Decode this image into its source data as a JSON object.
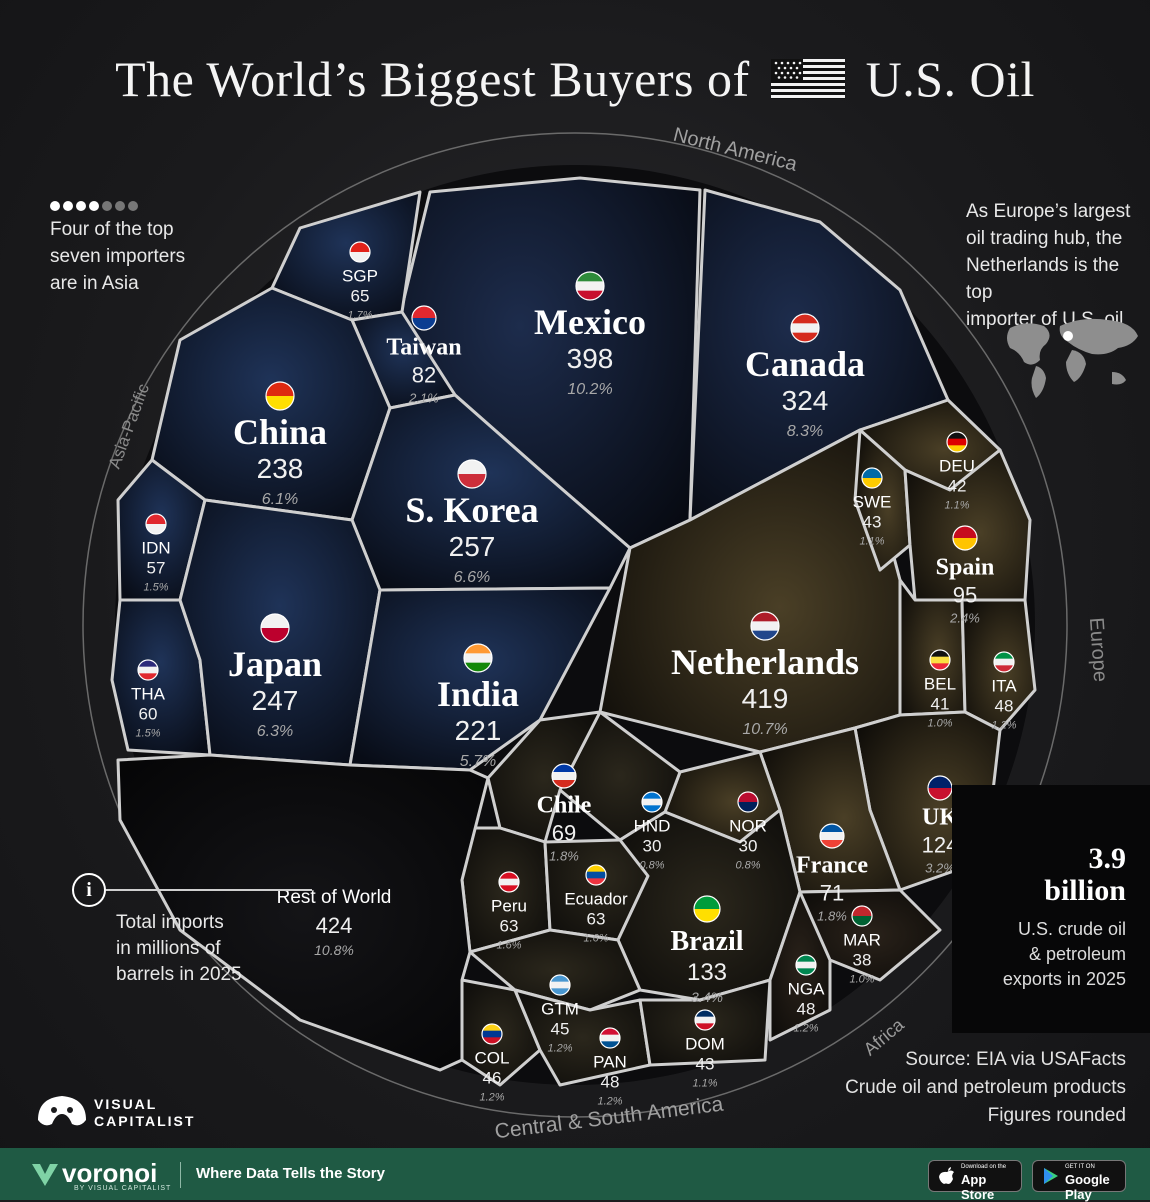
{
  "title": {
    "before": "The World’s Biggest Buyers of",
    "after": "U.S. Oil"
  },
  "notes": {
    "asia": [
      "Four of the top",
      "seven importers",
      "are in Asia"
    ],
    "europe": [
      "As Europe’s largest",
      "oil trading hub, the",
      "Netherlands is the top",
      "importer of U.S. oil"
    ],
    "legend": [
      "Total imports",
      "in millions of",
      "barrels in 2025"
    ]
  },
  "regions": {
    "north_america": "North America",
    "asia_pacific": "Asia-Pacific",
    "europe": "Europe",
    "africa": "Africa",
    "central_south_america": "Central & South America"
  },
  "stat": {
    "value": "3.9",
    "unit": "billion",
    "desc": [
      "U.S. crude oil",
      "& petroleum",
      "exports in 2025"
    ]
  },
  "source": [
    "Source: EIA via USAFacts",
    "Crude oil and petroleum products",
    "Figures rounded"
  ],
  "footer": {
    "brand": "voronoi",
    "by": "BY VISUAL CAPITALIST",
    "tagline": "Where Data Tells the Story",
    "appstore_small": "Download on the",
    "appstore": "App Store",
    "googleplay_small": "GET IT ON",
    "googleplay": "Google Play",
    "logo": [
      "VISUAL",
      "CAPITALIST"
    ]
  },
  "colors": {
    "asia": "#12203a",
    "north_america": "#101b30",
    "europe": "#2c2618",
    "south_america": "#1d1a14",
    "africa": "#1a1612",
    "rest": "#0a0a0c",
    "border": "#d8d8d8"
  },
  "chart_data": {
    "type": "voronoi",
    "title": "The World’s Biggest Buyers of U.S. Oil",
    "unit": "Total imports in millions of barrels in 2025",
    "total": "3.9 billion",
    "regions": [
      "North America",
      "Asia-Pacific",
      "Europe",
      "Africa",
      "Central & South America"
    ],
    "countries": [
      {
        "label": "Netherlands",
        "value": 419,
        "share": "10.7%",
        "region": "Europe"
      },
      {
        "label": "Mexico",
        "value": 398,
        "share": "10.2%",
        "region": "North America"
      },
      {
        "label": "Canada",
        "value": 324,
        "share": "8.3%",
        "region": "North America"
      },
      {
        "label": "S. Korea",
        "value": 257,
        "share": "6.6%",
        "region": "Asia-Pacific"
      },
      {
        "label": "Japan",
        "value": 247,
        "share": "6.3%",
        "region": "Asia-Pacific"
      },
      {
        "label": "China",
        "value": 238,
        "share": "6.1%",
        "region": "Asia-Pacific"
      },
      {
        "label": "India",
        "value": 221,
        "share": "5.7%",
        "region": "Asia-Pacific"
      },
      {
        "label": "Brazil",
        "value": 133,
        "share": "3.4%",
        "region": "Central & South America"
      },
      {
        "label": "UK",
        "value": 124,
        "share": "3.2%",
        "region": "Europe"
      },
      {
        "label": "Spain",
        "value": 95,
        "share": "2.4%",
        "region": "Europe"
      },
      {
        "label": "Taiwan",
        "value": 82,
        "share": "2.1%",
        "region": "Asia-Pacific"
      },
      {
        "label": "France",
        "value": 71,
        "share": "1.8%",
        "region": "Europe"
      },
      {
        "label": "Chile",
        "value": 69,
        "share": "1.8%",
        "region": "Central & South America"
      },
      {
        "label": "SGP",
        "value": 65,
        "share": "1.7%",
        "region": "Asia-Pacific"
      },
      {
        "label": "Peru",
        "value": 63,
        "share": "1.6%",
        "region": "Central & South America"
      },
      {
        "label": "Ecuador",
        "value": 63,
        "share": "1.6%",
        "region": "Central & South America"
      },
      {
        "label": "THA",
        "value": 60,
        "share": "1.5%",
        "region": "Asia-Pacific"
      },
      {
        "label": "IDN",
        "value": 57,
        "share": "1.5%",
        "region": "Asia-Pacific"
      },
      {
        "label": "ITA",
        "value": 48,
        "share": "1.2%",
        "region": "Europe"
      },
      {
        "label": "NGA",
        "value": 48,
        "share": "1.2%",
        "region": "Africa"
      },
      {
        "label": "PAN",
        "value": 48,
        "share": "1.2%",
        "region": "Central & South America"
      },
      {
        "label": "COL",
        "value": 46,
        "share": "1.2%",
        "region": "Central & South America"
      },
      {
        "label": "GTM",
        "value": 45,
        "share": "1.2%",
        "region": "Central & South America"
      },
      {
        "label": "SWE",
        "value": 43,
        "share": "1.1%",
        "region": "Europe"
      },
      {
        "label": "DOM",
        "value": 43,
        "share": "1.1%",
        "region": "Central & South America"
      },
      {
        "label": "DEU",
        "value": 42,
        "share": "1.1%",
        "region": "Europe"
      },
      {
        "label": "BEL",
        "value": 41,
        "share": "1.0%",
        "region": "Europe"
      },
      {
        "label": "MAR",
        "value": 38,
        "share": "1.0%",
        "region": "Africa"
      },
      {
        "label": "NOR",
        "value": 30,
        "share": "0.8%",
        "region": "Europe"
      },
      {
        "label": "HND",
        "value": 30,
        "share": "0.8%",
        "region": "Central & South America"
      },
      {
        "label": "Rest of World",
        "value": 424,
        "share": "10.8%",
        "region": ""
      }
    ]
  }
}
